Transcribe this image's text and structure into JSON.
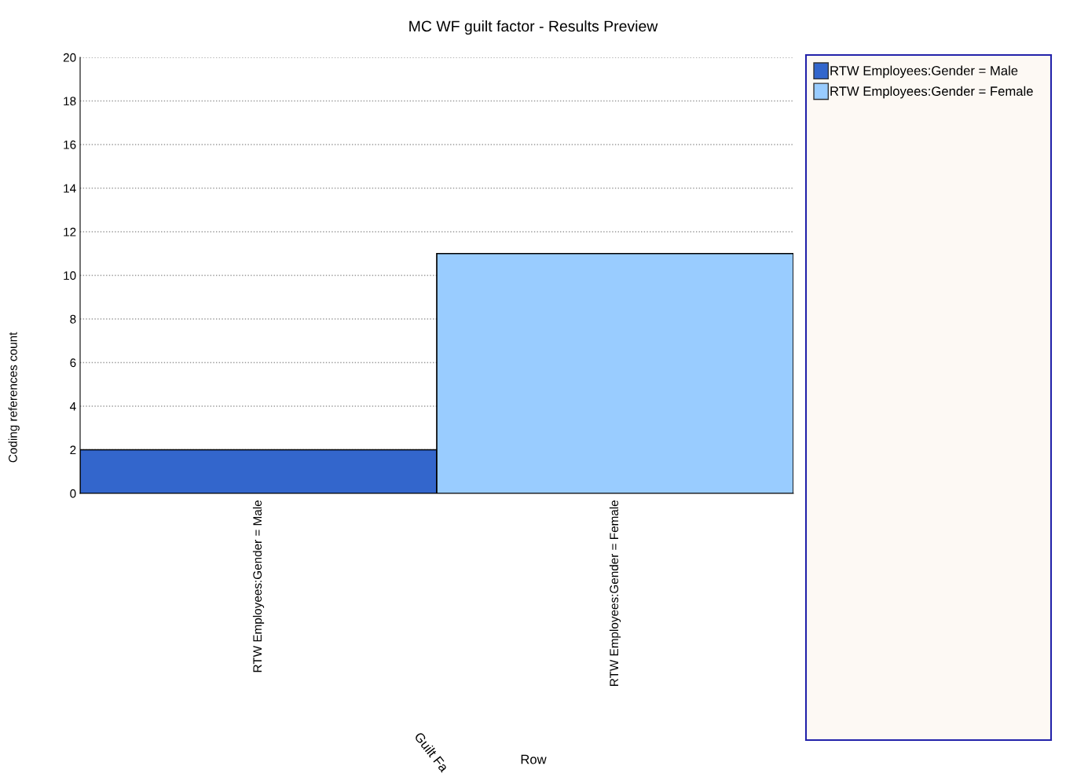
{
  "chart_data": {
    "type": "bar",
    "title": "MC WF guilt factor - Results Preview",
    "ylabel": "Coding references count",
    "categories": [
      "RTW Employees:Gender = Male",
      "RTW Employees:Gender = Female"
    ],
    "series": [
      {
        "name": "RTW Employees:Gender = Male",
        "color": "#3366cc",
        "values": [
          2,
          null
        ]
      },
      {
        "name": "RTW Employees:Gender = Female",
        "color": "#99ccff",
        "values": [
          null,
          11
        ]
      }
    ],
    "ylim": [
      0,
      20
    ],
    "yticks": [
      0,
      2,
      4,
      6,
      8,
      10,
      12,
      14,
      16,
      18,
      20
    ],
    "grid": "y",
    "legend": "right",
    "annotations": [
      "Guilt Fa",
      "Row"
    ]
  }
}
